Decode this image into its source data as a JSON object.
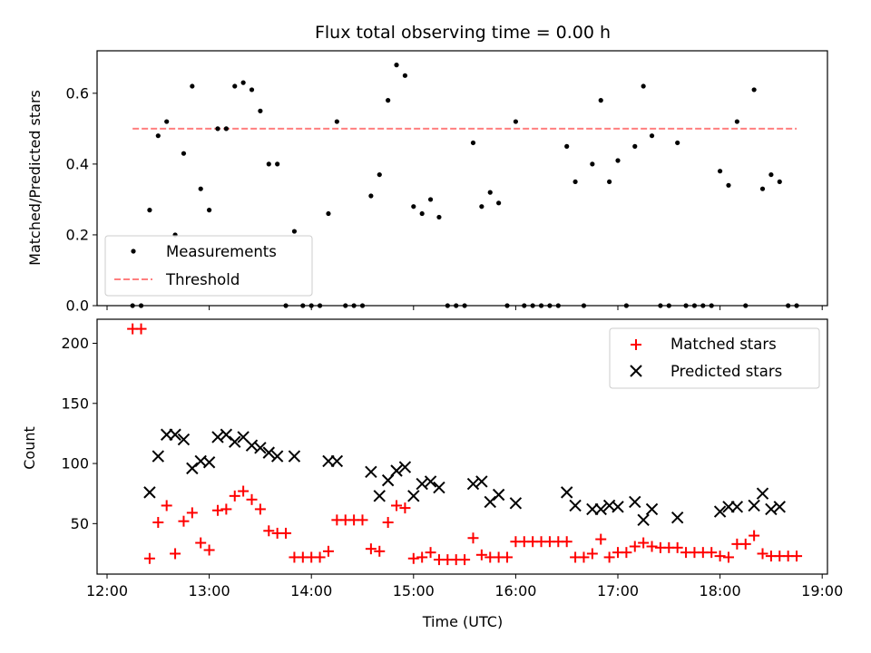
{
  "chart_data": [
    {
      "type": "scatter",
      "title": "Flux total observing time = 0.00 h",
      "xlabel": "",
      "ylabel": "Matched/Predicted stars",
      "ylim": [
        0,
        0.72
      ],
      "xlim": [
        "12:00",
        "19:00"
      ],
      "yticks": [
        "0.0",
        "0.2",
        "0.4",
        "0.6"
      ],
      "legend_position": "lower-left",
      "series": [
        {
          "name": "Measurements",
          "color": "#000000",
          "marker": "dot",
          "points": [
            [
              "12:15",
              0.0
            ],
            [
              "12:20",
              0.0
            ],
            [
              "12:25",
              0.27
            ],
            [
              "12:30",
              0.48
            ],
            [
              "12:35",
              0.52
            ],
            [
              "12:40",
              0.2
            ],
            [
              "12:45",
              0.43
            ],
            [
              "12:50",
              0.62
            ],
            [
              "12:55",
              0.33
            ],
            [
              "13:00",
              0.27
            ],
            [
              "13:05",
              0.5
            ],
            [
              "13:10",
              0.5
            ],
            [
              "13:15",
              0.62
            ],
            [
              "13:20",
              0.63
            ],
            [
              "13:25",
              0.61
            ],
            [
              "13:30",
              0.55
            ],
            [
              "13:35",
              0.4
            ],
            [
              "13:40",
              0.4
            ],
            [
              "13:45",
              0.0
            ],
            [
              "13:50",
              0.21
            ],
            [
              "13:55",
              0.0
            ],
            [
              "14:00",
              0.0
            ],
            [
              "14:05",
              0.0
            ],
            [
              "14:10",
              0.26
            ],
            [
              "14:15",
              0.52
            ],
            [
              "14:20",
              0.0
            ],
            [
              "14:25",
              0.0
            ],
            [
              "14:30",
              0.0
            ],
            [
              "14:35",
              0.31
            ],
            [
              "14:40",
              0.37
            ],
            [
              "14:45",
              0.58
            ],
            [
              "14:50",
              0.68
            ],
            [
              "14:55",
              0.65
            ],
            [
              "15:00",
              0.28
            ],
            [
              "15:05",
              0.26
            ],
            [
              "15:10",
              0.3
            ],
            [
              "15:15",
              0.25
            ],
            [
              "15:20",
              0.0
            ],
            [
              "15:25",
              0.0
            ],
            [
              "15:30",
              0.0
            ],
            [
              "15:35",
              0.46
            ],
            [
              "15:40",
              0.28
            ],
            [
              "15:45",
              0.32
            ],
            [
              "15:50",
              0.29
            ],
            [
              "15:55",
              0.0
            ],
            [
              "16:00",
              0.52
            ],
            [
              "16:05",
              0.0
            ],
            [
              "16:10",
              0.0
            ],
            [
              "16:15",
              0.0
            ],
            [
              "16:20",
              0.0
            ],
            [
              "16:25",
              0.0
            ],
            [
              "16:30",
              0.45
            ],
            [
              "16:35",
              0.35
            ],
            [
              "16:40",
              0.0
            ],
            [
              "16:45",
              0.4
            ],
            [
              "16:50",
              0.58
            ],
            [
              "16:55",
              0.35
            ],
            [
              "17:00",
              0.41
            ],
            [
              "17:05",
              0.0
            ],
            [
              "17:10",
              0.45
            ],
            [
              "17:15",
              0.62
            ],
            [
              "17:20",
              0.48
            ],
            [
              "17:25",
              0.0
            ],
            [
              "17:30",
              0.0
            ],
            [
              "17:35",
              0.46
            ],
            [
              "17:40",
              0.0
            ],
            [
              "17:45",
              0.0
            ],
            [
              "17:50",
              0.0
            ],
            [
              "17:55",
              0.0
            ],
            [
              "18:00",
              0.38
            ],
            [
              "18:05",
              0.34
            ],
            [
              "18:10",
              0.52
            ],
            [
              "18:15",
              0.0
            ],
            [
              "18:20",
              0.61
            ],
            [
              "18:25",
              0.33
            ],
            [
              "18:30",
              0.37
            ],
            [
              "18:35",
              0.35
            ],
            [
              "18:40",
              0.0
            ],
            [
              "18:45",
              0.0
            ]
          ]
        },
        {
          "name": "Threshold",
          "color": "#ff7f7f",
          "style": "dashed",
          "points": [
            [
              "12:15",
              0.5
            ],
            [
              "18:45",
              0.5
            ]
          ]
        }
      ]
    },
    {
      "type": "scatter",
      "title": "",
      "xlabel": "Time (UTC)",
      "ylabel": "Count",
      "ylim": [
        8,
        220
      ],
      "xlim": [
        "12:00",
        "19:00"
      ],
      "xticks": [
        "12:00",
        "13:00",
        "14:00",
        "15:00",
        "16:00",
        "17:00",
        "18:00",
        "19:00"
      ],
      "yticks": [
        "50",
        "100",
        "150",
        "200"
      ],
      "legend_position": "upper-right",
      "series": [
        {
          "name": "Matched stars",
          "color": "#ff0000",
          "marker": "plus",
          "points": [
            [
              "12:15",
              212
            ],
            [
              "12:20",
              212
            ],
            [
              "12:25",
              21
            ],
            [
              "12:30",
              51
            ],
            [
              "12:35",
              65
            ],
            [
              "12:40",
              25
            ],
            [
              "12:45",
              52
            ],
            [
              "12:50",
              59
            ],
            [
              "12:55",
              34
            ],
            [
              "13:00",
              28
            ],
            [
              "13:05",
              61
            ],
            [
              "13:10",
              62
            ],
            [
              "13:15",
              73
            ],
            [
              "13:20",
              77
            ],
            [
              "13:25",
              70
            ],
            [
              "13:30",
              62
            ],
            [
              "13:35",
              44
            ],
            [
              "13:40",
              42
            ],
            [
              "13:45",
              42
            ],
            [
              "13:50",
              22
            ],
            [
              "13:55",
              22
            ],
            [
              "14:00",
              22
            ],
            [
              "14:05",
              22
            ],
            [
              "14:10",
              27
            ],
            [
              "14:15",
              53
            ],
            [
              "14:20",
              53
            ],
            [
              "14:25",
              53
            ],
            [
              "14:30",
              53
            ],
            [
              "14:35",
              29
            ],
            [
              "14:40",
              27
            ],
            [
              "14:45",
              51
            ],
            [
              "14:50",
              65
            ],
            [
              "14:55",
              63
            ],
            [
              "15:00",
              21
            ],
            [
              "15:05",
              22
            ],
            [
              "15:10",
              26
            ],
            [
              "15:15",
              20
            ],
            [
              "15:20",
              20
            ],
            [
              "15:25",
              20
            ],
            [
              "15:30",
              20
            ],
            [
              "15:35",
              38
            ],
            [
              "15:40",
              24
            ],
            [
              "15:45",
              22
            ],
            [
              "15:50",
              22
            ],
            [
              "15:55",
              22
            ],
            [
              "16:00",
              35
            ],
            [
              "16:05",
              35
            ],
            [
              "16:10",
              35
            ],
            [
              "16:15",
              35
            ],
            [
              "16:20",
              35
            ],
            [
              "16:25",
              35
            ],
            [
              "16:30",
              35
            ],
            [
              "16:35",
              22
            ],
            [
              "16:40",
              22
            ],
            [
              "16:45",
              25
            ],
            [
              "16:50",
              37
            ],
            [
              "16:55",
              22
            ],
            [
              "17:00",
              26
            ],
            [
              "17:05",
              26
            ],
            [
              "17:10",
              31
            ],
            [
              "17:15",
              34
            ],
            [
              "17:20",
              31
            ],
            [
              "17:25",
              30
            ],
            [
              "17:30",
              30
            ],
            [
              "17:35",
              30
            ],
            [
              "17:40",
              26
            ],
            [
              "17:45",
              26
            ],
            [
              "17:50",
              26
            ],
            [
              "17:55",
              26
            ],
            [
              "18:00",
              23
            ],
            [
              "18:05",
              22
            ],
            [
              "18:10",
              33
            ],
            [
              "18:15",
              33
            ],
            [
              "18:20",
              40
            ],
            [
              "18:25",
              25
            ],
            [
              "18:30",
              23
            ],
            [
              "18:35",
              23
            ],
            [
              "18:40",
              23
            ],
            [
              "18:45",
              23
            ]
          ]
        },
        {
          "name": "Predicted stars",
          "color": "#000000",
          "marker": "x",
          "points": [
            [
              "12:25",
              76
            ],
            [
              "12:30",
              106
            ],
            [
              "12:35",
              124
            ],
            [
              "12:40",
              124
            ],
            [
              "12:45",
              120
            ],
            [
              "12:50",
              96
            ],
            [
              "12:55",
              102
            ],
            [
              "13:00",
              101
            ],
            [
              "13:05",
              122
            ],
            [
              "13:10",
              124
            ],
            [
              "13:15",
              118
            ],
            [
              "13:20",
              122
            ],
            [
              "13:25",
              115
            ],
            [
              "13:30",
              113
            ],
            [
              "13:35",
              109
            ],
            [
              "13:40",
              106
            ],
            [
              "13:50",
              106
            ],
            [
              "14:10",
              102
            ],
            [
              "14:15",
              102
            ],
            [
              "14:35",
              93
            ],
            [
              "14:40",
              73
            ],
            [
              "14:45",
              86
            ],
            [
              "14:50",
              94
            ],
            [
              "14:55",
              97
            ],
            [
              "15:00",
              73
            ],
            [
              "15:05",
              83
            ],
            [
              "15:10",
              85
            ],
            [
              "15:15",
              80
            ],
            [
              "15:35",
              83
            ],
            [
              "15:40",
              85
            ],
            [
              "15:45",
              68
            ],
            [
              "15:50",
              74
            ],
            [
              "16:00",
              67
            ],
            [
              "16:30",
              76
            ],
            [
              "16:35",
              65
            ],
            [
              "16:45",
              62
            ],
            [
              "16:50",
              62
            ],
            [
              "16:55",
              65
            ],
            [
              "17:00",
              64
            ],
            [
              "17:10",
              68
            ],
            [
              "17:15",
              53
            ],
            [
              "17:20",
              62
            ],
            [
              "17:35",
              55
            ],
            [
              "18:00",
              60
            ],
            [
              "18:05",
              64
            ],
            [
              "18:10",
              64
            ],
            [
              "18:20",
              65
            ],
            [
              "18:25",
              75
            ],
            [
              "18:30",
              62
            ],
            [
              "18:35",
              64
            ]
          ]
        }
      ]
    }
  ]
}
